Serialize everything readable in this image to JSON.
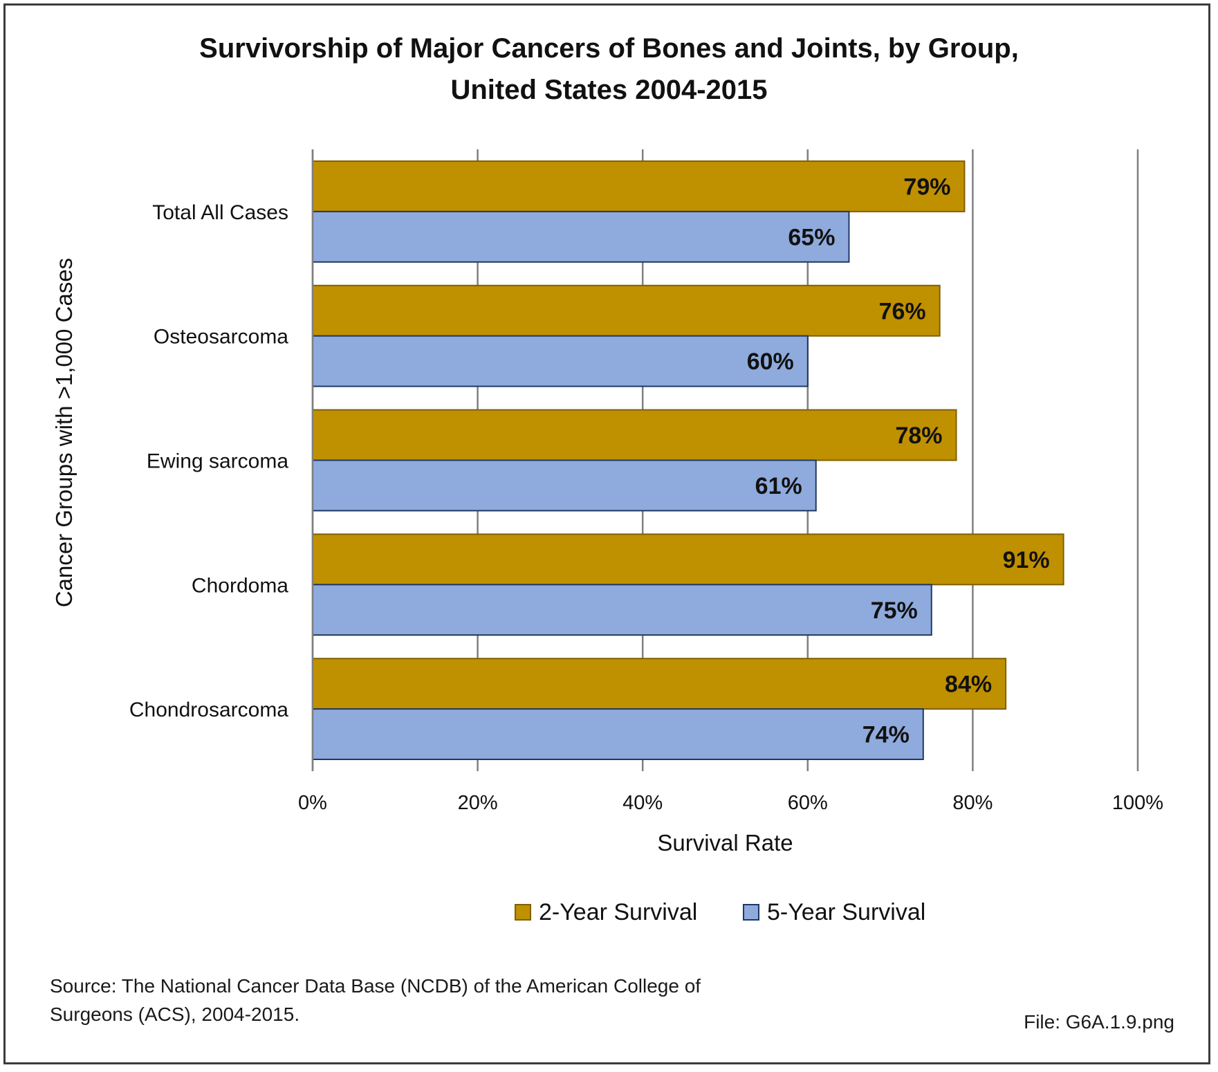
{
  "chart_data": {
    "type": "bar",
    "orientation": "horizontal",
    "title": "Survivorship of Major Cancers of Bones and Joints, by Group,\nUnited States 2004-2015",
    "xlabel": "Survival Rate",
    "ylabel": "Cancer Groups with >1,000 Cases",
    "categories": [
      "Total All Cases",
      "Osteosarcoma",
      "Ewing sarcoma",
      "Chordoma",
      "Chondrosarcoma"
    ],
    "series": [
      {
        "name": "2-Year Survival",
        "values": [
          79,
          76,
          78,
          91,
          84
        ],
        "labels": [
          "79%",
          "76%",
          "78%",
          "91%",
          "84%"
        ],
        "color": "#BF9000",
        "stroke": "#7F6000"
      },
      {
        "name": "5-Year Survival",
        "values": [
          65,
          60,
          61,
          75,
          74
        ],
        "labels": [
          "65%",
          "60%",
          "61%",
          "75%",
          "74%"
        ],
        "color": "#8FAADC",
        "stroke": "#1F3864"
      }
    ],
    "xlim": [
      0,
      100
    ],
    "xticks": [
      0,
      20,
      40,
      60,
      80,
      100
    ],
    "xtick_labels": [
      "0%",
      "20%",
      "40%",
      "60%",
      "80%",
      "100%"
    ],
    "grid": "vertical",
    "legend_position": "bottom"
  },
  "notes": {
    "source": "Source: The National Cancer Data Base (NCDB) of the American College of\nSurgeons (ACS), 2004-2015.",
    "file": "File: G6A.1.9.png"
  },
  "colors": {
    "gridline": "#7f7f7f",
    "text": "#111111"
  }
}
